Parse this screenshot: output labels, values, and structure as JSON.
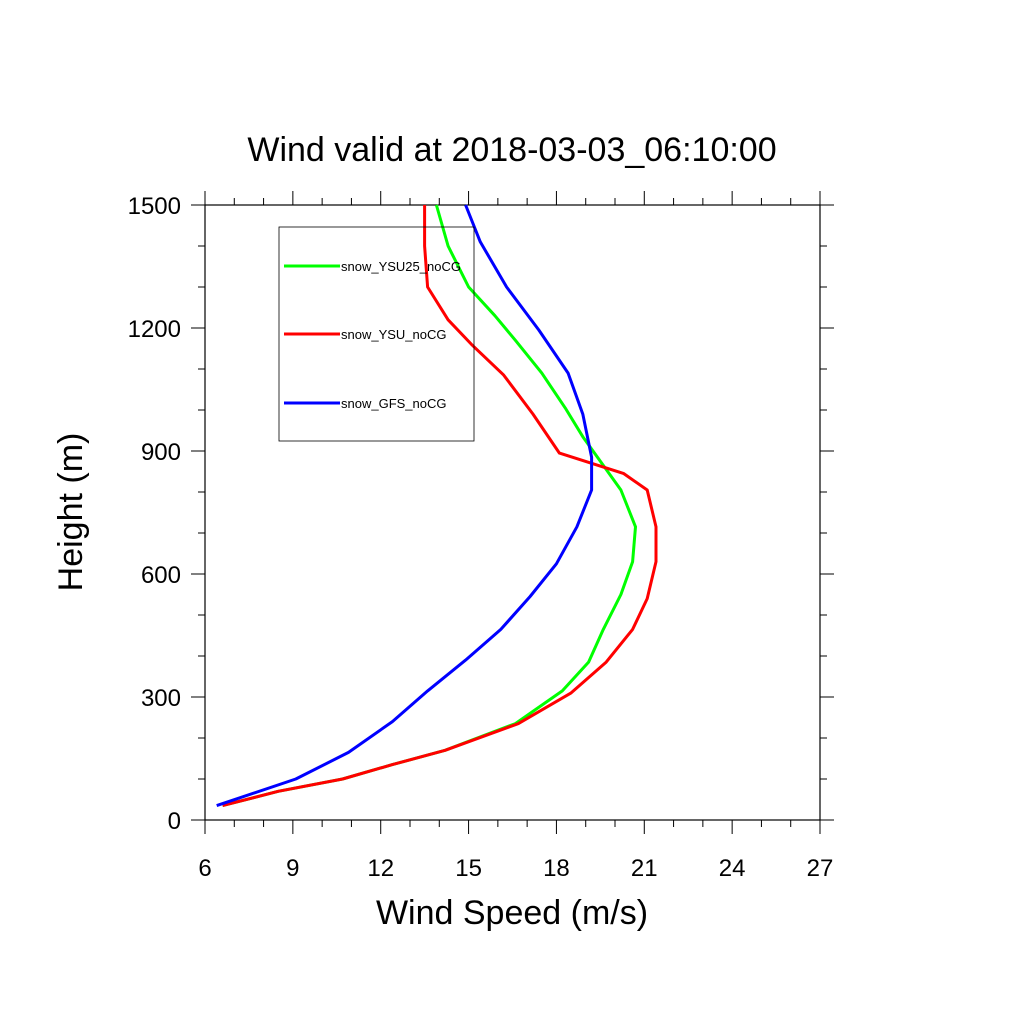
{
  "chart_data": {
    "type": "line",
    "title": "Wind valid at 2018-03-03_06:10:00",
    "xlabel": "Wind Speed (m/s)",
    "ylabel": "Height (m)",
    "xlim": [
      6,
      27
    ],
    "ylim": [
      0,
      1500
    ],
    "xticks": [
      "6",
      "9",
      "12",
      "15",
      "18",
      "21",
      "24",
      "27"
    ],
    "yticks": [
      "0",
      "300",
      "600",
      "900",
      "1200",
      "1500"
    ],
    "grid": false,
    "legend_position": "top-left",
    "series": [
      {
        "name": "snow_YSU25_noCG",
        "color": "#00ff00",
        "points": [
          [
            6.6,
            35
          ],
          [
            8.5,
            70
          ],
          [
            10.7,
            100
          ],
          [
            12.4,
            135
          ],
          [
            14.2,
            170
          ],
          [
            16.6,
            235
          ],
          [
            18.2,
            315
          ],
          [
            19.1,
            385
          ],
          [
            19.6,
            465
          ],
          [
            20.2,
            550
          ],
          [
            20.6,
            630
          ],
          [
            20.7,
            715
          ],
          [
            20.2,
            805
          ],
          [
            19.6,
            865
          ],
          [
            18.9,
            935
          ],
          [
            18.3,
            1005
          ],
          [
            17.5,
            1090
          ],
          [
            16.6,
            1170
          ],
          [
            15.9,
            1230
          ],
          [
            15.0,
            1300
          ],
          [
            14.3,
            1400
          ],
          [
            13.9,
            1500
          ]
        ]
      },
      {
        "name": "snow_YSU_noCG",
        "color": "#ff0000",
        "points": [
          [
            6.6,
            35
          ],
          [
            8.5,
            70
          ],
          [
            10.7,
            100
          ],
          [
            12.4,
            135
          ],
          [
            14.2,
            170
          ],
          [
            16.7,
            235
          ],
          [
            18.5,
            310
          ],
          [
            19.7,
            385
          ],
          [
            20.6,
            465
          ],
          [
            21.1,
            540
          ],
          [
            21.4,
            630
          ],
          [
            21.4,
            715
          ],
          [
            21.1,
            805
          ],
          [
            20.3,
            845
          ],
          [
            18.1,
            895
          ],
          [
            17.2,
            990
          ],
          [
            16.2,
            1085
          ],
          [
            15.1,
            1160
          ],
          [
            14.3,
            1220
          ],
          [
            13.6,
            1300
          ],
          [
            13.5,
            1400
          ],
          [
            13.5,
            1500
          ]
        ]
      },
      {
        "name": "snow_GFS_noCG",
        "color": "#0000ff",
        "points": [
          [
            6.4,
            35
          ],
          [
            9.1,
            100
          ],
          [
            10.9,
            165
          ],
          [
            12.4,
            240
          ],
          [
            13.6,
            315
          ],
          [
            14.9,
            390
          ],
          [
            16.1,
            465
          ],
          [
            17.1,
            545
          ],
          [
            18.0,
            625
          ],
          [
            18.7,
            715
          ],
          [
            19.2,
            805
          ],
          [
            19.2,
            885
          ],
          [
            18.9,
            990
          ],
          [
            18.4,
            1090
          ],
          [
            17.4,
            1195
          ],
          [
            16.3,
            1300
          ],
          [
            15.4,
            1410
          ],
          [
            14.9,
            1500
          ]
        ]
      }
    ]
  }
}
